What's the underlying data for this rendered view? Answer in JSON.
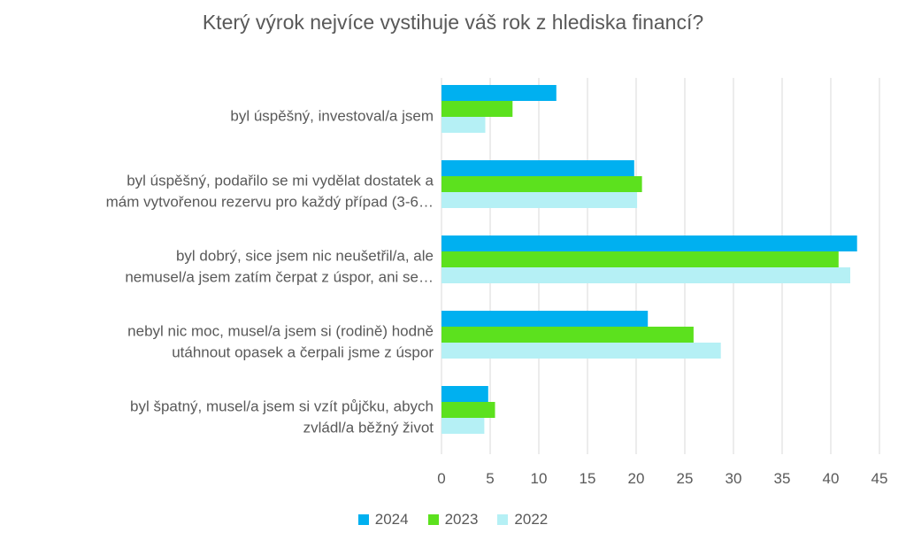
{
  "chart_data": {
    "type": "bar",
    "orientation": "horizontal",
    "title": "Který výrok nejvíce vystihuje váš rok z hlediska financí?",
    "categories": [
      [
        "byl úspěšný, investoval/a jsem"
      ],
      [
        "byl úspěšný, podařilo se mi vydělat dostatek a",
        "mám vytvořenou rezervu pro každý případ (3-6…"
      ],
      [
        "byl dobrý, sice jsem nic neušetřil/a, ale",
        "nemusel/a jsem zatím čerpat z úspor, ani se…"
      ],
      [
        "nebyl nic moc, musel/a jsem si (rodině) hodně",
        "utáhnout opasek a čerpali jsme z úspor"
      ],
      [
        "byl špatný, musel/a jsem si vzít půjčku, abych",
        "zvládl/a běžný život"
      ]
    ],
    "series": [
      {
        "name": "2024",
        "color": "#00b0f0",
        "values": [
          11.8,
          19.8,
          42.7,
          21.2,
          4.8
        ]
      },
      {
        "name": "2023",
        "color": "#5ce11e",
        "values": [
          7.3,
          20.6,
          40.8,
          25.9,
          5.5
        ]
      },
      {
        "name": "2022",
        "color": "#b5f0f5",
        "values": [
          4.5,
          20.1,
          42.0,
          28.7,
          4.4
        ]
      }
    ],
    "xlim": [
      0,
      45
    ],
    "xticks": [
      0,
      5,
      10,
      15,
      20,
      25,
      30,
      35,
      40,
      45
    ],
    "grid": true,
    "legend_position": "bottom"
  }
}
